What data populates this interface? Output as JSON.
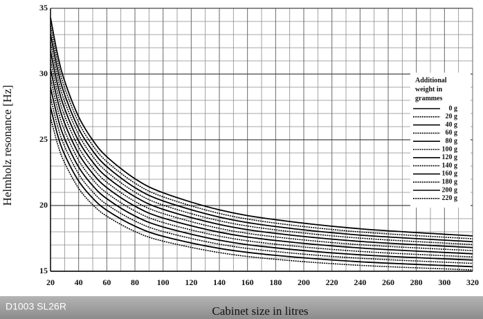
{
  "chart_data": {
    "type": "line",
    "ylabel": "Helmholz resonance [Hz]",
    "xlabel": "Cabinet size in litres",
    "code_label": "D1003 SL26R",
    "legend_title": "Additional weight in grammes",
    "legend_position": "right",
    "grid": true,
    "xlim": [
      20,
      320
    ],
    "xticks": [
      20,
      40,
      60,
      80,
      100,
      120,
      140,
      160,
      180,
      200,
      220,
      240,
      260,
      280,
      300,
      320
    ],
    "ylim": [
      15,
      35
    ],
    "yticks": [
      15,
      20,
      25,
      30,
      35
    ],
    "x": [
      20,
      25,
      30,
      40,
      50,
      60,
      80,
      100,
      140,
      180,
      240,
      320
    ],
    "series": [
      {
        "name": "0 g",
        "color": "#000000",
        "style": "solid",
        "values": [
          34.29,
          31.49,
          29.48,
          26.75,
          24.97,
          23.71,
          22.04,
          20.97,
          19.67,
          18.92,
          18.23,
          17.69
        ]
      },
      {
        "name": "20 g",
        "color": "#000000",
        "style": "dotted",
        "values": [
          33.67,
          30.94,
          28.97,
          26.31,
          24.57,
          23.34,
          21.7,
          20.66,
          19.4,
          18.66,
          17.99,
          17.47
        ]
      },
      {
        "name": "40 g",
        "color": "#000000",
        "style": "solid",
        "values": [
          33.04,
          30.37,
          28.45,
          25.85,
          24.16,
          22.96,
          21.36,
          20.35,
          19.12,
          18.4,
          17.75,
          17.25
        ]
      },
      {
        "name": "60 g",
        "color": "#000000",
        "style": "dotted",
        "values": [
          32.4,
          29.79,
          27.92,
          25.39,
          23.74,
          22.57,
          21.02,
          20.03,
          18.84,
          18.15,
          17.52,
          17.03
        ]
      },
      {
        "name": "80 g",
        "color": "#000000",
        "style": "solid",
        "values": [
          31.74,
          29.2,
          27.38,
          24.91,
          23.31,
          22.17,
          20.67,
          19.71,
          18.56,
          17.88,
          17.27,
          16.8
        ]
      },
      {
        "name": "100 g",
        "color": "#000000",
        "style": "dotted",
        "values": [
          31.07,
          28.6,
          26.83,
          24.43,
          22.87,
          21.77,
          20.31,
          19.39,
          18.26,
          17.61,
          17.02,
          16.57
        ]
      },
      {
        "name": "120 g",
        "color": "#000000",
        "style": "solid",
        "values": [
          30.39,
          27.99,
          26.27,
          23.94,
          22.43,
          21.36,
          19.95,
          19.05,
          17.97,
          17.34,
          16.77,
          16.33
        ]
      },
      {
        "name": "140 g",
        "color": "#000000",
        "style": "dotted",
        "values": [
          29.69,
          27.36,
          25.69,
          23.44,
          21.98,
          20.95,
          19.58,
          18.71,
          17.67,
          17.06,
          16.51,
          16.09
        ]
      },
      {
        "name": "160 g",
        "color": "#000000",
        "style": "solid",
        "values": [
          28.97,
          26.72,
          25.1,
          22.93,
          21.51,
          20.52,
          19.2,
          18.37,
          17.36,
          16.78,
          16.25,
          15.85
        ]
      },
      {
        "name": "180 g",
        "color": "#000000",
        "style": "dotted",
        "values": [
          28.23,
          26.06,
          24.5,
          22.4,
          21.04,
          20.08,
          18.82,
          18.02,
          17.06,
          16.5,
          15.99,
          15.6
        ]
      },
      {
        "name": "200 g",
        "color": "#000000",
        "style": "solid",
        "values": [
          27.48,
          25.38,
          23.88,
          21.86,
          20.56,
          19.64,
          18.43,
          17.66,
          16.74,
          16.21,
          15.72,
          15.35
        ]
      },
      {
        "name": "220 g",
        "color": "#000000",
        "style": "dotted",
        "values": [
          26.7,
          24.69,
          23.25,
          21.31,
          20.06,
          19.19,
          18.02,
          17.29,
          16.42,
          15.91,
          15.45,
          15.1
        ]
      }
    ]
  }
}
